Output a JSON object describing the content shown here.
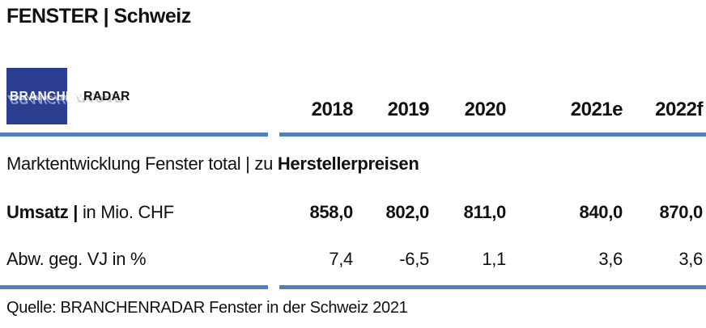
{
  "title": "FENSTER | Schweiz",
  "logo": {
    "part1": "BRANCHEN",
    "part2": "RADAR"
  },
  "header": {
    "years": [
      "2018",
      "2019",
      "2020",
      "2021e",
      "2022f"
    ]
  },
  "section": {
    "title_regular": "Marktentwicklung Fenster total | zu ",
    "title_bold": "Herstellerpreisen"
  },
  "rows": {
    "umsatz": {
      "label_bold": "Umsatz | ",
      "label_regular": "in Mio. CHF",
      "values": [
        "858,0",
        "802,0",
        "811,0",
        "840,0",
        "870,0"
      ]
    },
    "abw": {
      "label": "Abw. geg. VJ in %",
      "values": [
        "7,4",
        "-6,5",
        "1,1",
        "3,6",
        "3,6"
      ]
    }
  },
  "source": "Quelle: BRANCHENRADAR Fenster in der Schweiz 2021",
  "colors": {
    "line_blue": "#4F81BD",
    "logo_blue": "#2B3E8F"
  },
  "chart_data": {
    "type": "table",
    "title": "Marktentwicklung Fenster total | zu Herstellerpreisen",
    "categories": [
      "2018",
      "2019",
      "2020",
      "2021e",
      "2022f"
    ],
    "series": [
      {
        "name": "Umsatz | in Mio. CHF",
        "values": [
          858.0,
          802.0,
          811.0,
          840.0,
          870.0
        ]
      },
      {
        "name": "Abw. geg. VJ in %",
        "values": [
          7.4,
          -6.5,
          1.1,
          3.6,
          3.6
        ]
      }
    ],
    "source": "Quelle: BRANCHENRADAR Fenster in der Schweiz 2021",
    "legend_position": "none",
    "grid": false
  }
}
